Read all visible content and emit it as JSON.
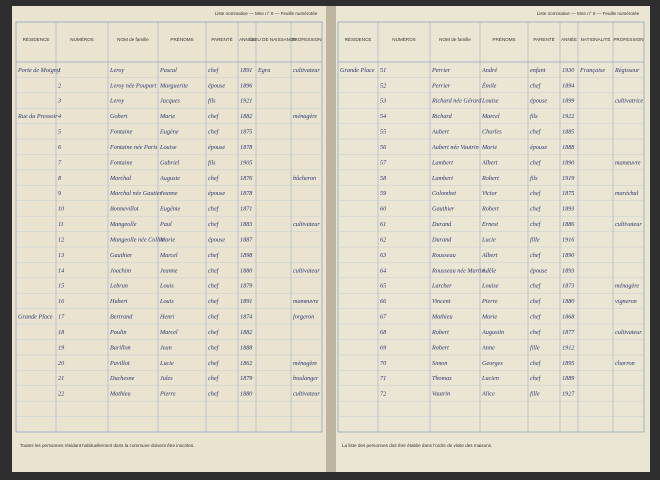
{
  "pages": [
    {
      "header": "Liste nominative — Mne n° 6 — Feuille numérotée",
      "columns": [
        "RÉSIDENCE",
        "NUMÉROS",
        "NOM de famille",
        "PRÉNOMS",
        "PARENTÉ",
        "ANNÉE",
        "LIEU DE NAISSANCE",
        "PROFESSION"
      ],
      "rows": [
        [
          "Porte de Moigny",
          "1",
          "Leroy",
          "Pascal",
          "chef",
          "1891",
          "Egra",
          "cultivateur"
        ],
        [
          null,
          "2",
          "Leroy née Poupart",
          "Marguerite",
          "épouse",
          "1896",
          null,
          null
        ],
        [
          null,
          "3",
          "Leroy",
          "Jacques",
          "fils",
          "1921",
          null,
          null
        ],
        [
          "Rue du Pressoir",
          "4",
          "Gobert",
          "Marie",
          "chef",
          "1882",
          null,
          "ménagère"
        ],
        [
          null,
          "5",
          "Fontaine",
          "Eugène",
          "chef",
          "1875",
          null,
          null
        ],
        [
          null,
          "6",
          "Fontaine née Paris",
          "Louise",
          "épouse",
          "1878",
          null,
          null
        ],
        [
          null,
          "7",
          "Fontaine",
          "Gabriel",
          "fils",
          "1905",
          null,
          null
        ],
        [
          null,
          "8",
          "Marchal",
          "Auguste",
          "chef",
          "1876",
          null,
          "bûcheron"
        ],
        [
          null,
          "9",
          "Marchal née Gautier",
          "Jeanne",
          "épouse",
          "1878",
          null,
          null
        ],
        [
          null,
          "10",
          "Bonnevillot",
          "Eugénie",
          "chef",
          "1871",
          null,
          null
        ],
        [
          null,
          "11",
          "Mangeolle",
          "Paul",
          "chef",
          "1883",
          null,
          "cultivateur"
        ],
        [
          null,
          "12",
          "Mangeolle née Collin",
          "Marie",
          "épouse",
          "1887",
          null,
          null
        ],
        [
          null,
          "13",
          "Gauthier",
          "Marcel",
          "chef",
          "1898",
          null,
          null
        ],
        [
          null,
          "14",
          "Joachim",
          "Jeanne",
          "chef",
          "1880",
          null,
          "cultivateur"
        ],
        [
          null,
          "15",
          "Lebrun",
          "Louis",
          "chef",
          "1879",
          null,
          null
        ],
        [
          null,
          "16",
          "Hubert",
          "Louis",
          "chef",
          "1891",
          null,
          "manœuvre"
        ],
        [
          "Grande Place",
          "17",
          "Bertrand",
          "Henri",
          "chef",
          "1874",
          null,
          "forgeron"
        ],
        [
          null,
          "18",
          "Poulin",
          "Marcel",
          "chef",
          "1882",
          null,
          null
        ],
        [
          null,
          "19",
          "Barillon",
          "Jean",
          "chef",
          "1888",
          null,
          null
        ],
        [
          null,
          "20",
          "Pavillot",
          "Lucie",
          "chef",
          "1862",
          null,
          "ménagère"
        ],
        [
          null,
          "21",
          "Duchesne",
          "Jules",
          "chef",
          "1879",
          null,
          "boulanger"
        ],
        [
          null,
          "22",
          "Mathieu",
          "Pierre",
          "chef",
          "1880",
          null,
          "cultivateur"
        ]
      ],
      "footer": "Toutes les personnes résidant habituellement dans la commune doivent être inscrites."
    },
    {
      "header": "Liste nominative — Mne n° 6 — Feuille numérotée",
      "columns": [
        "RÉSIDENCE",
        "NUMÉROS",
        "NOM de famille",
        "PRÉNOMS",
        "PARENTÉ",
        "ANNÉE",
        "NATIONALITÉ",
        "PROFESSION"
      ],
      "rows": [
        [
          "Grande Place",
          "51",
          "Perrier",
          "André",
          "enfant",
          "1930",
          "Française",
          "Régisseur"
        ],
        [
          null,
          "52",
          "Perrier",
          "Émile",
          "chef",
          "1894",
          null,
          null
        ],
        [
          null,
          "53",
          "Richard née Gérard",
          "Louise",
          "épouse",
          "1899",
          null,
          "cultivatrice"
        ],
        [
          null,
          "54",
          "Richard",
          "Marcel",
          "fils",
          "1922",
          null,
          null
        ],
        [
          null,
          "55",
          "Aubert",
          "Charles",
          "chef",
          "1885",
          null,
          null
        ],
        [
          null,
          "56",
          "Aubert née Vautrin",
          "Marie",
          "épouse",
          "1888",
          null,
          null
        ],
        [
          null,
          "57",
          "Lambert",
          "Albert",
          "chef",
          "1890",
          null,
          "manœuvre"
        ],
        [
          null,
          "58",
          "Lambert",
          "Robert",
          "fils",
          "1919",
          null,
          null
        ],
        [
          null,
          "59",
          "Colombet",
          "Victor",
          "chef",
          "1875",
          null,
          "maréchal"
        ],
        [
          null,
          "60",
          "Gauthier",
          "Robert",
          "chef",
          "1893",
          null,
          null
        ],
        [
          null,
          "61",
          "Durand",
          "Ernest",
          "chef",
          "1886",
          null,
          "cultivateur"
        ],
        [
          null,
          "62",
          "Durand",
          "Lucie",
          "fille",
          "1916",
          null,
          null
        ],
        [
          null,
          "63",
          "Rousseau",
          "Albert",
          "chef",
          "1890",
          null,
          null
        ],
        [
          null,
          "64",
          "Rousseau née Martin",
          "Adèle",
          "épouse",
          "1893",
          null,
          null
        ],
        [
          null,
          "65",
          "Larcher",
          "Louise",
          "chef",
          "1873",
          null,
          "ménagère"
        ],
        [
          null,
          "66",
          "Vincent",
          "Pierre",
          "chef",
          "1880",
          null,
          "vigneron"
        ],
        [
          null,
          "67",
          "Mathieu",
          "Marie",
          "chef",
          "1868",
          null,
          null
        ],
        [
          null,
          "68",
          "Robert",
          "Augustin",
          "chef",
          "1877",
          null,
          "cultivateur"
        ],
        [
          null,
          "69",
          "Robert",
          "Anne",
          "fille",
          "1912",
          null,
          null
        ],
        [
          null,
          "70",
          "Simon",
          "Georges",
          "chef",
          "1895",
          null,
          "charron"
        ],
        [
          null,
          "71",
          "Thomas",
          "Lucien",
          "chef",
          "1889",
          null,
          null
        ],
        [
          null,
          "72",
          "Vautrin",
          "Alice",
          "fille",
          "1927",
          null,
          null
        ]
      ],
      "footer": "La liste des personnes doit être établie dans l'ordre de visite des maisons."
    }
  ]
}
